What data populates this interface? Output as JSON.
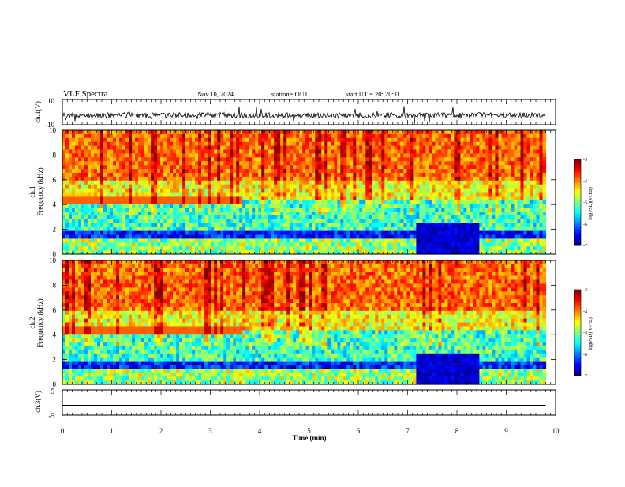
{
  "header": {
    "title": "VLF Spectra",
    "date": "Nov.10, 2024",
    "station": "station= OUJ",
    "start": "start  UT  =   20: 20: 0"
  },
  "chart_data": [
    {
      "type": "line",
      "name": "waveform-ch1",
      "ylabel": "ch.1(V)",
      "ylim": [
        -10,
        10
      ],
      "yticks": [
        "10",
        "-10"
      ],
      "xlim": [
        0,
        10
      ]
    },
    {
      "type": "heatmap",
      "name": "spectrogram-ch1",
      "ylabel": "ch.1\nFrequency (kHz)",
      "ylabel_line1": "ch.1",
      "ylabel_line2": "Frequency (kHz)",
      "ylim": [
        0,
        10
      ],
      "yticks": [
        "0",
        "2",
        "4",
        "6",
        "8",
        "10"
      ],
      "xlim": [
        0,
        10
      ],
      "colorbar": {
        "label": "log(PSD)(V²/Hz)",
        "range": [
          -7,
          -3
        ],
        "ticks": [
          "-3",
          "-4",
          "-5",
          "-6",
          "-7"
        ]
      },
      "dark_segment_min": [
        7.15,
        8.4
      ]
    },
    {
      "type": "heatmap",
      "name": "spectrogram-ch2",
      "ylabel_line1": "ch.2",
      "ylabel_line2": "Frequency (kHz)",
      "ylim": [
        0,
        10
      ],
      "yticks": [
        "0",
        "2",
        "4",
        "6",
        "8",
        "10"
      ],
      "xlim": [
        0,
        10
      ],
      "colorbar": {
        "label": "log(PSD)(V²/Hz)",
        "range": [
          -7,
          -3
        ],
        "ticks": [
          "-3",
          "-4",
          "-5",
          "-6",
          "-7"
        ]
      },
      "dark_segment_min": [
        7.15,
        8.4
      ]
    },
    {
      "type": "line",
      "name": "waveform-ch3",
      "ylabel": "ch.3(V)",
      "ylim": [
        -5,
        5
      ],
      "yticks": [
        "5",
        "-5"
      ],
      "values_constant": -1.2,
      "xlim": [
        0,
        10
      ]
    }
  ],
  "xaxis": {
    "label": "Time (min)",
    "ticks": [
      "0",
      "1",
      "2",
      "3",
      "4",
      "5",
      "6",
      "7",
      "8",
      "9",
      "10"
    ],
    "data_end_min": 9.8
  },
  "colors": {
    "low": "#00007a",
    "mid": "#00e000",
    "high": "#ff1e00"
  }
}
